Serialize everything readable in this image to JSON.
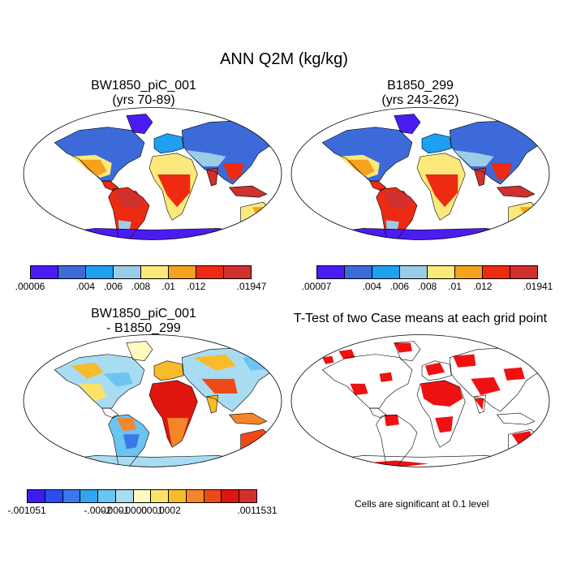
{
  "title": "ANN Q2M (kg/kg)",
  "panels": {
    "p1": {
      "line1": "BW1850_piC_001",
      "line2": "(yrs 70-89)"
    },
    "p2": {
      "line1": "B1850_299",
      "line2": "(yrs 243-262)"
    },
    "p3": {
      "line1": "BW1850_piC_001",
      "line2": "- B1850_299"
    },
    "p4": {
      "line1": "T-Test of two Case means at each grid point",
      "note": "Cells are significant at 0.1 level"
    }
  },
  "colorbars": {
    "cb1": {
      "colors": [
        "#4b1cf2",
        "#3c6bd9",
        "#1ea0f0",
        "#9ccde8",
        "#fbe97b",
        "#f5a21e",
        "#ee2a12",
        "#d0302e"
      ],
      "ticks": [
        ".00006",
        ".004",
        ".006",
        ".008",
        ".01",
        ".012",
        ".01947"
      ]
    },
    "cb2": {
      "colors": [
        "#4b1cf2",
        "#3c6bd9",
        "#1ea0f0",
        "#9ccde8",
        "#fbe97b",
        "#f5a21e",
        "#ee2a12",
        "#d0302e"
      ],
      "ticks": [
        ".00007",
        ".004",
        ".006",
        ".008",
        ".01",
        ".012",
        ".01941"
      ]
    },
    "cb3": {
      "colors": [
        "#3a1ef0",
        "#2a4cf0",
        "#3c78e8",
        "#2ea6f0",
        "#6cc4f0",
        "#a8dcf2",
        "#fffabe",
        "#fbe36a",
        "#f8bb2a",
        "#f4862a",
        "#ee4a18",
        "#e0160e",
        "#cf302e"
      ],
      "ticks": [
        "-.001051",
        "-.0002",
        "-.0001",
        "-.0000",
        ".0001",
        ".0002",
        ".0011531"
      ]
    }
  },
  "map_colors": {
    "ocean": "#ffffff",
    "antarctica": "#4b1cf2",
    "diff_antarctica": "#a8dcf2",
    "significant": "#ee1111"
  }
}
